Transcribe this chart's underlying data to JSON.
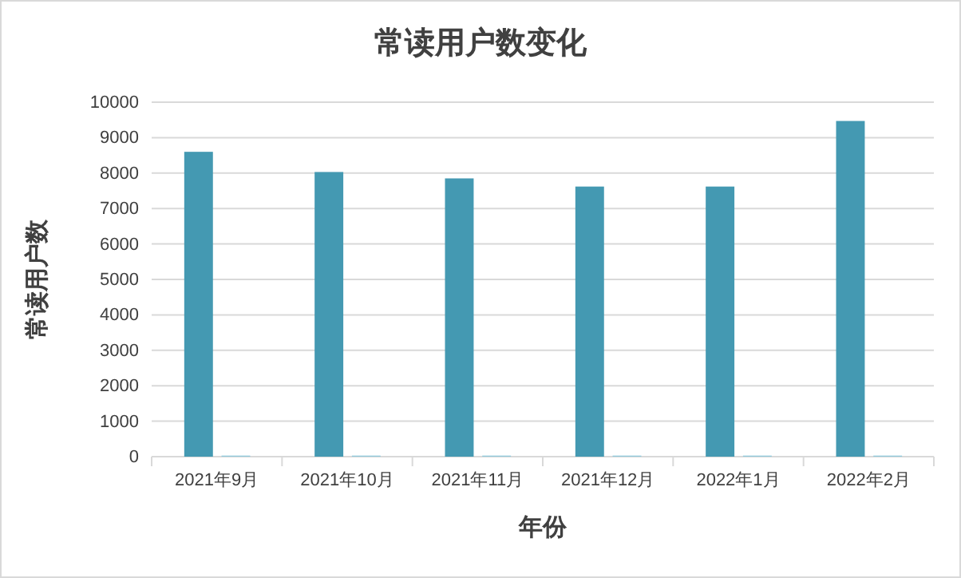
{
  "chart_data": {
    "type": "bar",
    "title": "常读用户数变化",
    "xlabel": "年份",
    "ylabel": "常读用户数",
    "categories": [
      "2021年9月",
      "2021年10月",
      "2021年11月",
      "2021年12月",
      "2022年1月",
      "2022年2月"
    ],
    "series": [
      {
        "color": "#4499b2",
        "values": [
          8600,
          8030,
          7850,
          7620,
          7620,
          9470
        ]
      },
      {
        "color": "#92cadc",
        "values": [
          30,
          30,
          30,
          30,
          30,
          30
        ]
      }
    ],
    "ylim": [
      0,
      10000
    ],
    "yticks": [
      0,
      1000,
      2000,
      3000,
      4000,
      5000,
      6000,
      7000,
      8000,
      9000,
      10000
    ],
    "grid": "y"
  }
}
